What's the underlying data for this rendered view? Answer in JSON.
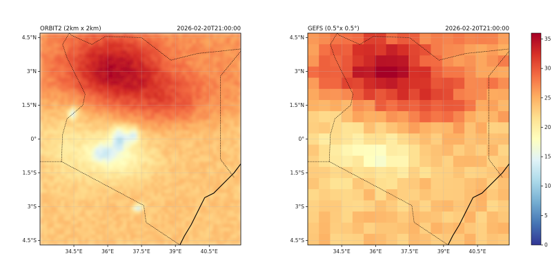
{
  "chart_data": [
    {
      "type": "heatmap",
      "title_left": "ORBIT2 (2km x 2km)",
      "title_right": "2026-02-20T21:00:00",
      "x_ticks": [
        "34.5°E",
        "36°E",
        "37.5°E",
        "39°E",
        "40.5°E"
      ],
      "y_ticks": [
        "4.5°N",
        "3°N",
        "1.5°N",
        "0°",
        "1.5°S",
        "3°S",
        "4.5°S"
      ],
      "xlim": [
        33.0,
        41.9
      ],
      "ylim": [
        -4.7,
        4.7
      ],
      "resolution": "fine",
      "grid": true
    },
    {
      "type": "heatmap",
      "title_left": "GEFS (0.5°x 0.5°)",
      "title_right": "2026-02-20T21:00:00",
      "x_ticks": [
        "34.5°E",
        "36°E",
        "37.5°E",
        "39°E",
        "40.5°E"
      ],
      "y_ticks": [
        "4.5°N",
        "3°N",
        "1.5°N",
        "0°",
        "1.5°S",
        "3°S",
        "4.5°S"
      ],
      "xlim": [
        33.0,
        41.9
      ],
      "ylim": [
        -4.7,
        4.7
      ],
      "resolution": "coarse",
      "grid": true
    }
  ],
  "colorbar": {
    "ticks": [
      "0",
      "5",
      "10",
      "15",
      "20",
      "25",
      "30",
      "35"
    ],
    "min": 0,
    "max": 36,
    "colormap": [
      "#313695",
      "#4575b4",
      "#74add1",
      "#abd9e9",
      "#e0f3f8",
      "#ffffbf",
      "#fee090",
      "#fdae61",
      "#f46d43",
      "#d73027",
      "#a50026"
    ]
  }
}
